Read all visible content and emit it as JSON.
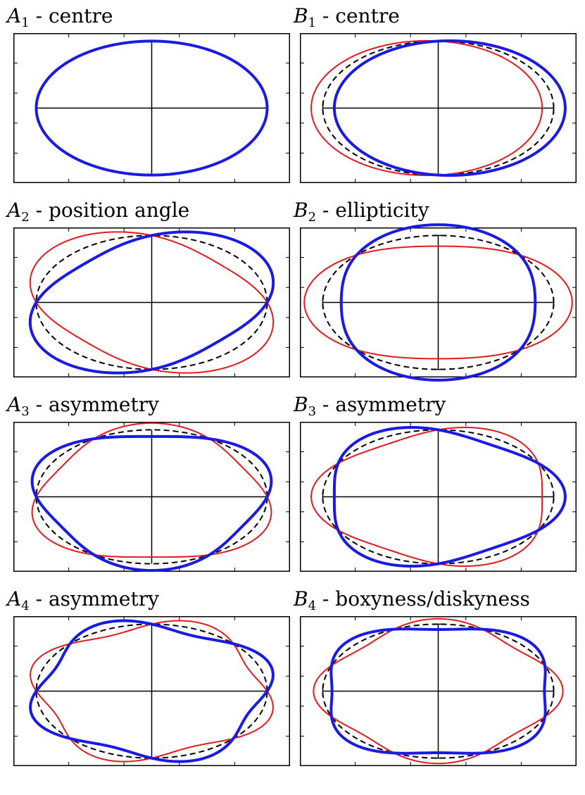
{
  "panels": [
    {
      "id": "A1",
      "letter": "A",
      "sub": "1",
      "label": " - centre",
      "axis_bars": false,
      "m": 0,
      "a_red": 0,
      "b_red": -0.06,
      "a_blue": 0,
      "b_blue": 0.06
    },
    {
      "id": "B1",
      "letter": "B",
      "sub": "1",
      "label": " - centre",
      "axis_bars": true,
      "m": 1,
      "a_red": -0.1,
      "b_red": 0,
      "a_blue": 0.1,
      "b_blue": 0
    },
    {
      "id": "A2",
      "letter": "A",
      "sub": "2",
      "label": " - position angle",
      "axis_bars": false,
      "m": 2,
      "a_red": 0,
      "b_red": -0.18,
      "a_blue": 0,
      "b_blue": 0.18
    },
    {
      "id": "B2",
      "letter": "B",
      "sub": "2",
      "label": " - ellipticity",
      "axis_bars": true,
      "m": 2,
      "a_red": 0.16,
      "b_red": 0,
      "a_blue": -0.16,
      "b_blue": 0
    },
    {
      "id": "A3",
      "letter": "A",
      "sub": "3",
      "label": " - asymmetry",
      "axis_bars": false,
      "m": 3,
      "a_red": 0,
      "b_red": -0.1,
      "a_blue": 0,
      "b_blue": 0.1
    },
    {
      "id": "B3",
      "letter": "B",
      "sub": "3",
      "label": " - asymmetry",
      "axis_bars": true,
      "m": 3,
      "a_red": -0.1,
      "b_red": 0,
      "a_blue": 0.1,
      "b_blue": 0
    },
    {
      "id": "A4",
      "letter": "A",
      "sub": "4",
      "label": " - asymmetry",
      "axis_bars": false,
      "m": 4,
      "a_red": 0,
      "b_red": -0.1,
      "a_blue": 0,
      "b_blue": 0.1
    },
    {
      "id": "B4",
      "letter": "B",
      "sub": "4",
      "label": " - boxyness/diskyness",
      "axis_bars": true,
      "m": 4,
      "a_red": 0.08,
      "b_red": 0,
      "a_blue": -0.08,
      "b_blue": 0
    }
  ],
  "colors": {
    "red": "#e8191d",
    "blue": "#1a1ae6",
    "reference": "#000000",
    "frame": "#000000"
  },
  "ellipse_axis_ratio": 0.58
}
